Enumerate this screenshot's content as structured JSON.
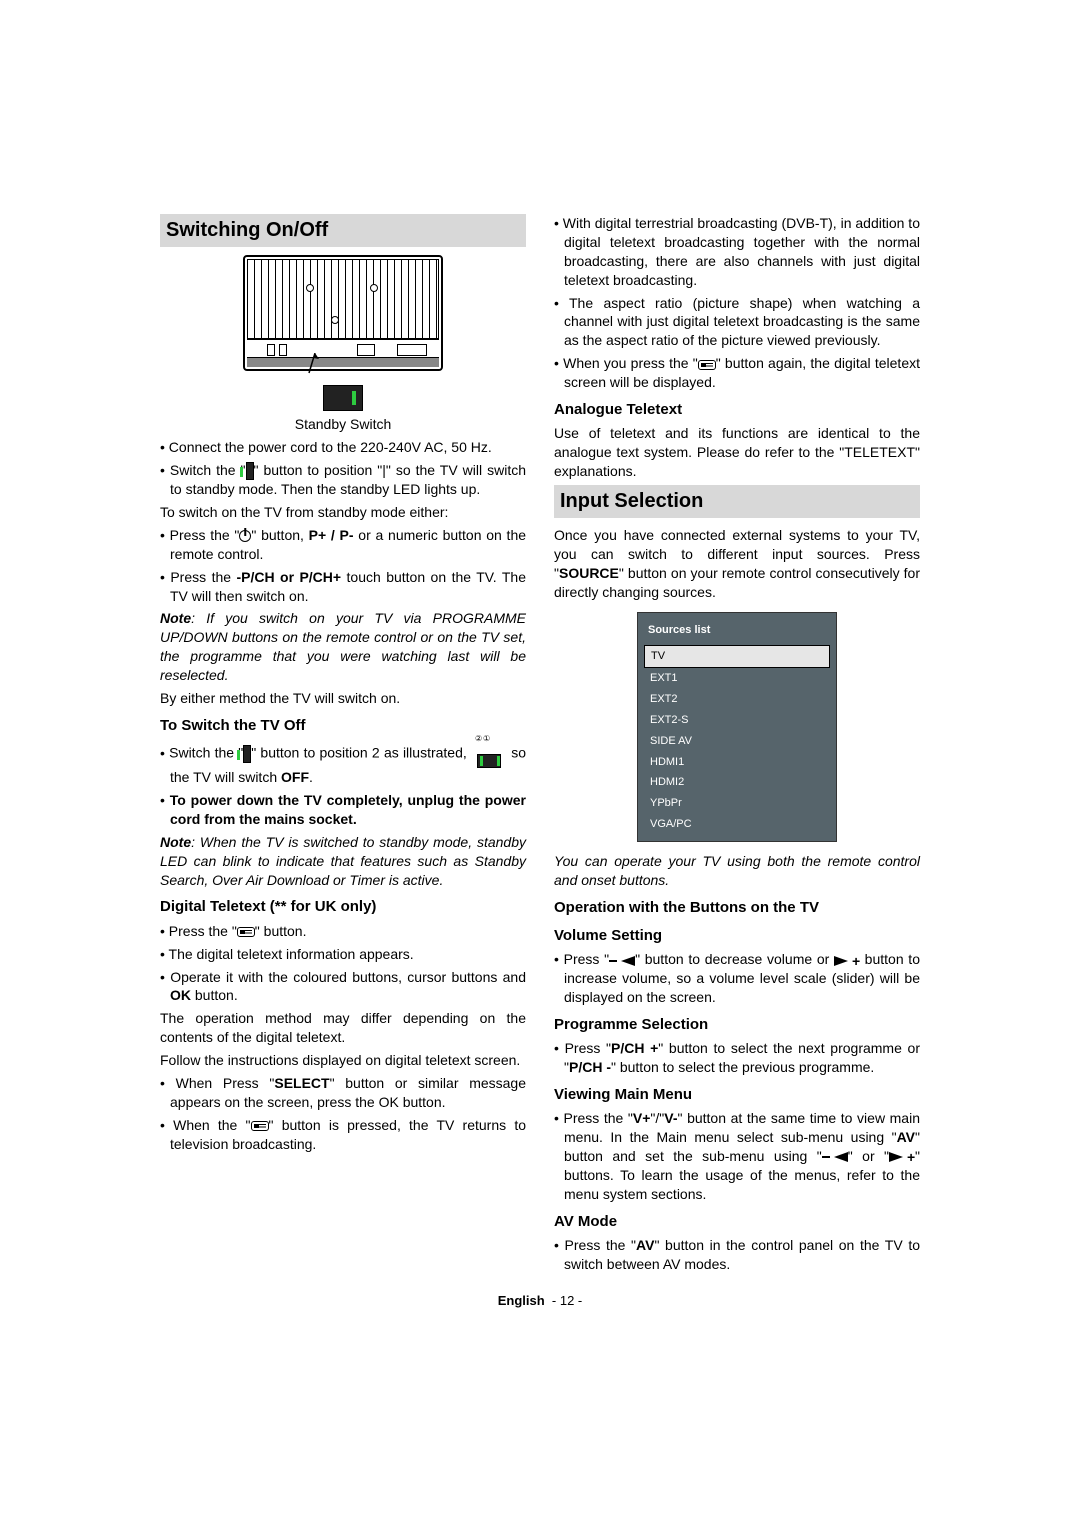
{
  "left": {
    "heading1": "Switching On/Off",
    "standby_switch_label": "Standby Switch",
    "p1a": "Connect the power cord to the 220-240V AC, 50 Hz.",
    "p2a": "Switch the \"",
    "p2b": "\" button to position \"|\" so the TV will switch to standby mode. Then the standby LED lights up.",
    "p3": "To switch on the TV from standby mode either:",
    "p4a": "Press the \"",
    "p4b": "\" button, ",
    "p4c": "P+ / P-",
    "p4d": " or a numeric button on the remote control.",
    "p5a": "Press the ",
    "p5b": "-P/CH or P/CH+",
    "p5c": " touch button on the TV. The TV will then switch on.",
    "note1a": "Note",
    "note1b": ": If you switch on your TV via PROGRAMME UP/DOWN buttons on the remote control or on the TV set, the programme that you were watching last will be reselected.",
    "p6": "By either method the TV will switch on.",
    "sub1": "To Switch the TV Off",
    "p7a": "Switch the \"",
    "p7b": "\" button to position 2 as illustrated, ",
    "p7c": " so the TV will switch ",
    "p7d": "OFF",
    "p7e": ".",
    "p8": "To power down the TV completely, unplug the power cord from the mains socket.",
    "note2a": "Note",
    "note2b": ": When the TV is switched to standby mode, standby LED can blink to indicate that features such as Standby Search, Over Air Download or Timer is active.",
    "sub2": "Digital Teletext (** for UK only)",
    "p9a": "Press the \"",
    "p9b": "\" button.",
    "p10": "The digital teletext information appears.",
    "p11a": "Operate it with the coloured buttons, cursor buttons and ",
    "p11b": "OK",
    "p11c": " button.",
    "p12": "The operation method may differ depending on the contents of the digital teletext.",
    "p13": "Follow the instructions displayed on digital teletext screen.",
    "p14a": "When Press \"",
    "p14b": "SELECT",
    "p14c": "\" button or similar message appears on the screen, press the OK button.",
    "p15a": "When the \"",
    "p15b": "\" button is pressed, the TV returns to television broadcasting."
  },
  "right": {
    "p1": "With digital terrestrial broadcasting (DVB-T), in addition to digital teletext broadcasting together with the normal broadcasting, there are also channels with just digital teletext broadcasting.",
    "p2": "The aspect ratio (picture shape) when watching a channel with just digital teletext broadcasting is the same as the aspect ratio of the picture viewed previously.",
    "p3a": "When you press the \"",
    "p3b": "\" button again, the digital teletext screen will be displayed.",
    "sub1": "Analogue Teletext",
    "p4": "Use of teletext and its functions are identical to the analogue text system. Please do refer to the \"TELETEXT\" explanations.",
    "heading2": "Input Selection",
    "p5a": "Once you have connected external systems to your TV, you can switch to different input sources. Press \"",
    "p5b": "SOURCE",
    "p5c": "\" button on your remote control consecutively for directly changing sources.",
    "sources_title": "Sources list",
    "sources": [
      "TV",
      "EXT1",
      "EXT2",
      "EXT2-S",
      "SIDE AV",
      "HDMI1",
      "HDMI2",
      "YPbPr",
      "VGA/PC"
    ],
    "note3": "You can operate your TV using both the remote control and onset buttons.",
    "sub2": "Operation with the Buttons on the TV",
    "sub3": "Volume Setting",
    "p6a": "Press \"",
    "p6b": "\" button to decrease volume or ",
    "p6c": " button to increase volume, so a volume level scale (slider) will be displayed on the screen.",
    "sub4": "Programme Selection",
    "p7a": "Press \"",
    "p7b": "P/CH +",
    "p7c": "\" button to select the next programme or \"",
    "p7d": "P/CH -",
    "p7e": "\" button to select the previous programme.",
    "sub5": "Viewing Main Menu",
    "p8a": "Press the \"",
    "p8b": "V+",
    "p8c": "\"/\"",
    "p8d": "V-",
    "p8e": "\" button at the same time to view main menu. In the Main menu select sub-menu using \"",
    "p8f": "AV",
    "p8g": "\" button and set the sub-menu using \"",
    "p8h": "\" or \"",
    "p8i": "\" buttons. To learn the usage of the menus, refer to the menu system sections.",
    "sub6": "AV Mode",
    "p9a": "Press the \"",
    "p9b": "AV",
    "p9c": "\" button in the control panel on the TV to switch between AV modes."
  },
  "footer": {
    "lang": "English",
    "page": "- 12 -"
  }
}
